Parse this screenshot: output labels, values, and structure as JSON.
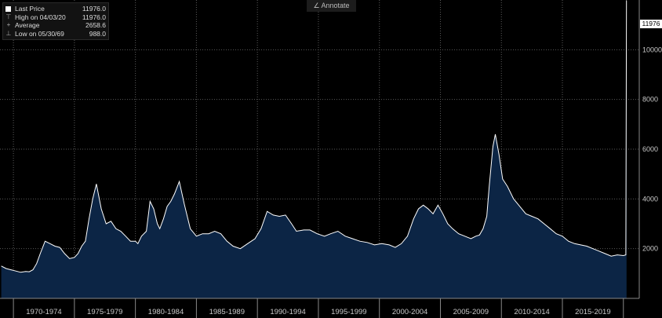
{
  "toolbar": {
    "annotate_label": "Annotate",
    "annotate_icon": "pencil-icon"
  },
  "legend": {
    "items": [
      {
        "icon": "square-icon",
        "label": "Last Price",
        "value": "11976.0"
      },
      {
        "icon": "high-marker-icon",
        "label": "High on 04/03/20",
        "value": "11976.0"
      },
      {
        "icon": "average-marker-icon",
        "label": "Average",
        "value": "2658.6"
      },
      {
        "icon": "low-marker-icon",
        "label": "Low on 05/30/69",
        "value": "988.0"
      }
    ]
  },
  "last_price_tag": "11976",
  "colors": {
    "background": "#000000",
    "area_fill": "#0c2545",
    "line": "#ffffff",
    "grid": "#5a5a5a"
  },
  "chart_data": {
    "type": "area",
    "xlabel": "",
    "ylabel": "",
    "grid": true,
    "legend_position": "top-left",
    "xlim": [
      1968.9,
      2021.3
    ],
    "ylim": [
      0,
      12000
    ],
    "yticks": [
      2000,
      4000,
      6000,
      8000,
      10000
    ],
    "xtick_labels": [
      "1970-1974",
      "1975-1979",
      "1980-1984",
      "1985-1989",
      "1990-1994",
      "1995-1999",
      "2000-2004",
      "2005-2009",
      "2010-2014",
      "2015-2019"
    ],
    "series": [
      {
        "x": [
          1969.0,
          1969.4,
          1969.8,
          1970.2,
          1970.6,
          1971.0,
          1971.3,
          1971.6,
          1971.9,
          1972.2,
          1972.6,
          1973.0,
          1973.4,
          1973.8,
          1974.2,
          1974.6,
          1975.0,
          1975.3,
          1975.6,
          1975.9,
          1976.2,
          1976.5,
          1976.8,
          1977.2,
          1977.6,
          1978.0,
          1978.4,
          1978.8,
          1979.2,
          1979.6,
          1980.0,
          1980.2,
          1980.5,
          1980.9,
          1981.2,
          1981.5,
          1981.8,
          1982.0,
          1982.3,
          1982.6,
          1982.9,
          1983.2,
          1983.6,
          1984.0,
          1984.5,
          1985.0,
          1985.5,
          1986.0,
          1986.5,
          1987.0,
          1987.5,
          1988.0,
          1988.6,
          1989.2,
          1989.8,
          1990.3,
          1990.8,
          1991.3,
          1991.8,
          1992.3,
          1992.8,
          1993.2,
          1993.8,
          1994.3,
          1994.9,
          1995.5,
          1996.0,
          1996.6,
          1997.2,
          1997.8,
          1998.4,
          1999.0,
          1999.6,
          2000.2,
          2000.8,
          2001.3,
          2001.8,
          2002.3,
          2002.8,
          2003.2,
          2003.6,
          2004.0,
          2004.4,
          2004.8,
          2005.2,
          2005.6,
          2006.0,
          2006.5,
          2007.0,
          2007.5,
          2007.9,
          2008.2,
          2008.5,
          2008.8,
          2009.0,
          2009.3,
          2009.5,
          2009.8,
          2010.1,
          2010.5,
          2011.0,
          2011.5,
          2012.0,
          2012.5,
          2013.0,
          2013.5,
          2014.0,
          2014.5,
          2015.0,
          2015.5,
          2016.0,
          2016.5,
          2017.0,
          2017.5,
          2018.0,
          2018.5,
          2019.0,
          2019.5,
          2020.0,
          2020.2,
          2020.25,
          2020.26
        ],
        "y": [
          1300,
          1200,
          1150,
          1100,
          1050,
          1080,
          1070,
          1150,
          1400,
          1800,
          2300,
          2200,
          2100,
          2050,
          1800,
          1600,
          1650,
          1800,
          2100,
          2300,
          3200,
          4000,
          4600,
          3600,
          3000,
          3100,
          2800,
          2700,
          2500,
          2300,
          2300,
          2200,
          2500,
          2700,
          3900,
          3600,
          3000,
          2800,
          3200,
          3700,
          3900,
          4200,
          4700,
          3800,
          2800,
          2500,
          2600,
          2600,
          2700,
          2600,
          2300,
          2100,
          2000,
          2200,
          2400,
          2800,
          3500,
          3350,
          3300,
          3350,
          3000,
          2700,
          2750,
          2750,
          2600,
          2500,
          2600,
          2700,
          2500,
          2400,
          2300,
          2250,
          2150,
          2200,
          2150,
          2050,
          2200,
          2500,
          3200,
          3600,
          3750,
          3600,
          3400,
          3750,
          3400,
          3000,
          2800,
          2600,
          2500,
          2400,
          2500,
          2550,
          2800,
          3300,
          4500,
          6100,
          6600,
          5800,
          4800,
          4500,
          4000,
          3700,
          3400,
          3300,
          3200,
          3000,
          2800,
          2600,
          2500,
          2300,
          2200,
          2150,
          2100,
          2000,
          1900,
          1800,
          1700,
          1750,
          1720,
          1750,
          11976,
          11976
        ]
      }
    ]
  }
}
